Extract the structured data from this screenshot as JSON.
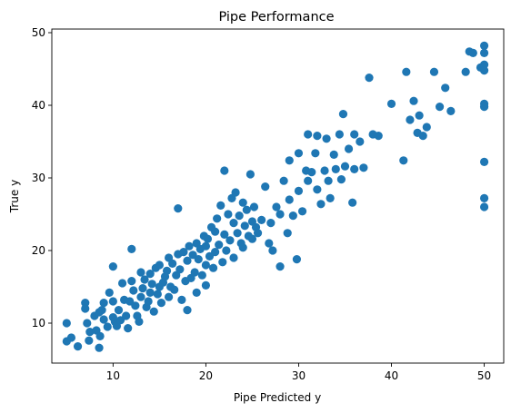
{
  "chart_data": {
    "type": "scatter",
    "title": "Pipe Performance",
    "xlabel": "Pipe Predicted y",
    "ylabel": "True y",
    "xlim": [
      3.4,
      52.1
    ],
    "ylim": [
      4.5,
      50.5
    ],
    "xticks": [
      10,
      20,
      30,
      40,
      50
    ],
    "yticks": [
      10,
      20,
      30,
      40,
      50
    ],
    "grid": false,
    "point_color": "#1f77b4",
    "points": [
      [
        5,
        10
      ],
      [
        5,
        7.5
      ],
      [
        5.5,
        8
      ],
      [
        6.2,
        6.8
      ],
      [
        7,
        12.8
      ],
      [
        7,
        12
      ],
      [
        7.2,
        10
      ],
      [
        7.4,
        7.6
      ],
      [
        7.5,
        8.8
      ],
      [
        8,
        11
      ],
      [
        8.2,
        9
      ],
      [
        8.5,
        11.5
      ],
      [
        8.5,
        6.6
      ],
      [
        8.6,
        8.2
      ],
      [
        8.8,
        11.8
      ],
      [
        9,
        12.8
      ],
      [
        9,
        10.5
      ],
      [
        9.4,
        9.5
      ],
      [
        9.6,
        14.2
      ],
      [
        10,
        10.8
      ],
      [
        10,
        13
      ],
      [
        10,
        17.8
      ],
      [
        10.2,
        10.2
      ],
      [
        10.4,
        9.6
      ],
      [
        10.6,
        11.8
      ],
      [
        10.8,
        10.4
      ],
      [
        11,
        15.5
      ],
      [
        11.2,
        13.2
      ],
      [
        11.4,
        11
      ],
      [
        11.6,
        9.3
      ],
      [
        11.8,
        13
      ],
      [
        12,
        20.2
      ],
      [
        12,
        15.8
      ],
      [
        12.2,
        14.5
      ],
      [
        12.4,
        12.4
      ],
      [
        12.6,
        11
      ],
      [
        12.8,
        10.2
      ],
      [
        13,
        17
      ],
      [
        13,
        13.6
      ],
      [
        13.2,
        14.8
      ],
      [
        13.4,
        16
      ],
      [
        13.6,
        12.2
      ],
      [
        13.8,
        13
      ],
      [
        14,
        16.8
      ],
      [
        14,
        14.2
      ],
      [
        14.2,
        15.4
      ],
      [
        14.4,
        11.6
      ],
      [
        14.6,
        17.6
      ],
      [
        14.8,
        14
      ],
      [
        15,
        15
      ],
      [
        15,
        18
      ],
      [
        15.2,
        12.8
      ],
      [
        15.4,
        15.6
      ],
      [
        15.6,
        16.4
      ],
      [
        15.8,
        17.2
      ],
      [
        16,
        13.6
      ],
      [
        16,
        19
      ],
      [
        16.2,
        15
      ],
      [
        16.4,
        18.2
      ],
      [
        16.6,
        14.6
      ],
      [
        16.8,
        16.6
      ],
      [
        17,
        25.8
      ],
      [
        17,
        19.5
      ],
      [
        17.2,
        17.4
      ],
      [
        17.4,
        13.2
      ],
      [
        17.6,
        19.8
      ],
      [
        17.8,
        15.8
      ],
      [
        18,
        11.8
      ],
      [
        18,
        18.6
      ],
      [
        18.2,
        20.6
      ],
      [
        18.4,
        16.2
      ],
      [
        18.6,
        19.4
      ],
      [
        18.8,
        17
      ],
      [
        19,
        21
      ],
      [
        19,
        14.2
      ],
      [
        19.2,
        18.8
      ],
      [
        19.4,
        20.2
      ],
      [
        19.6,
        16.6
      ],
      [
        19.8,
        22
      ],
      [
        20,
        18
      ],
      [
        20,
        20.6
      ],
      [
        20,
        15.2
      ],
      [
        20.2,
        21.6
      ],
      [
        20.4,
        19.2
      ],
      [
        20.6,
        23.2
      ],
      [
        20.8,
        17.6
      ],
      [
        21,
        22.6
      ],
      [
        21,
        19.8
      ],
      [
        21.2,
        24.4
      ],
      [
        21.4,
        20.8
      ],
      [
        21.6,
        26.2
      ],
      [
        21.8,
        18.4
      ],
      [
        22,
        31
      ],
      [
        22,
        22.2
      ],
      [
        22.2,
        20
      ],
      [
        22.4,
        25
      ],
      [
        22.6,
        21.4
      ],
      [
        22.8,
        27.2
      ],
      [
        23,
        23.8
      ],
      [
        23,
        19
      ],
      [
        23.2,
        28
      ],
      [
        23.4,
        22.4
      ],
      [
        23.6,
        24.8
      ],
      [
        23.8,
        21
      ],
      [
        24,
        26.6
      ],
      [
        24,
        20.4
      ],
      [
        24.2,
        23.4
      ],
      [
        24.4,
        25.6
      ],
      [
        24.6,
        22
      ],
      [
        24.8,
        30.5
      ],
      [
        25,
        24
      ],
      [
        25,
        21.6
      ],
      [
        25.2,
        26
      ],
      [
        25.4,
        23.2
      ],
      [
        25.6,
        22.4
      ],
      [
        26,
        24.2
      ],
      [
        26.4,
        28.8
      ],
      [
        26.8,
        21
      ],
      [
        27,
        23.8
      ],
      [
        27.2,
        20
      ],
      [
        27.6,
        26
      ],
      [
        28,
        17.8
      ],
      [
        28,
        25
      ],
      [
        28.4,
        29.6
      ],
      [
        28.8,
        22.4
      ],
      [
        29,
        32.4
      ],
      [
        29,
        27
      ],
      [
        29.4,
        24.8
      ],
      [
        29.8,
        18.8
      ],
      [
        30,
        33.4
      ],
      [
        30,
        28.2
      ],
      [
        30.4,
        25.4
      ],
      [
        30.8,
        31
      ],
      [
        31,
        36
      ],
      [
        31,
        29.6
      ],
      [
        31.4,
        30.8
      ],
      [
        31.8,
        33.4
      ],
      [
        32,
        35.8
      ],
      [
        32,
        28.4
      ],
      [
        32.4,
        26.4
      ],
      [
        32.8,
        31
      ],
      [
        33,
        35.4
      ],
      [
        33.2,
        29.6
      ],
      [
        33.4,
        27.2
      ],
      [
        33.8,
        33.2
      ],
      [
        34,
        31.2
      ],
      [
        34.4,
        36
      ],
      [
        34.6,
        29.8
      ],
      [
        34.8,
        38.8
      ],
      [
        35,
        31.6
      ],
      [
        35.4,
        34
      ],
      [
        35.8,
        26.6
      ],
      [
        36,
        36
      ],
      [
        36,
        31.2
      ],
      [
        36.6,
        35
      ],
      [
        37,
        31.4
      ],
      [
        37.6,
        43.8
      ],
      [
        38,
        36
      ],
      [
        38.6,
        35.8
      ],
      [
        40,
        40.2
      ],
      [
        41.3,
        32.4
      ],
      [
        41.6,
        44.6
      ],
      [
        42,
        38
      ],
      [
        42.4,
        40.6
      ],
      [
        42.8,
        36.2
      ],
      [
        43,
        38.6
      ],
      [
        43.4,
        35.8
      ],
      [
        43.8,
        37
      ],
      [
        44.6,
        44.6
      ],
      [
        45.2,
        39.8
      ],
      [
        45.8,
        42.4
      ],
      [
        46.4,
        39.2
      ],
      [
        48,
        44.6
      ],
      [
        48.4,
        47.4
      ],
      [
        48.8,
        47.2
      ],
      [
        49.6,
        45.2
      ],
      [
        50,
        48.2
      ],
      [
        50,
        47.2
      ],
      [
        50,
        45.6
      ],
      [
        50,
        44.8
      ],
      [
        50,
        40.2
      ],
      [
        50,
        39.8
      ],
      [
        50,
        32.2
      ],
      [
        50,
        27.2
      ],
      [
        50,
        26
      ]
    ]
  }
}
